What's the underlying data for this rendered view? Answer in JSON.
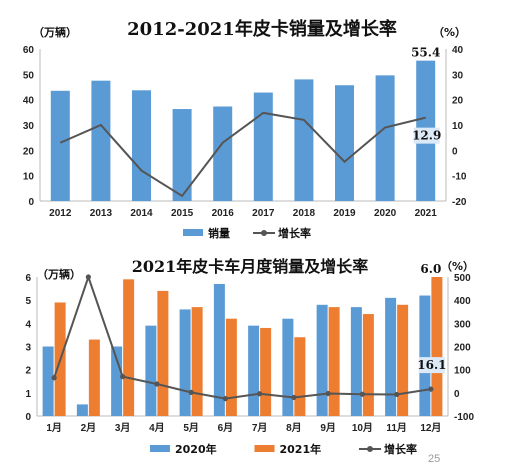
{
  "colors": {
    "blue": "#5b9bd5",
    "orange": "#ed7d31",
    "line": "#555555"
  },
  "page_number": "25",
  "chart_data": [
    {
      "type": "bar",
      "title": "2012-2021年皮卡销量及增长率",
      "y_unit": "（万辆）",
      "y2_unit": "（%）",
      "categories": [
        "2012",
        "2013",
        "2014",
        "2015",
        "2016",
        "2017",
        "2018",
        "2019",
        "2020",
        "2021"
      ],
      "series": [
        {
          "name": "销量",
          "type": "bar",
          "axis": "left",
          "color": "#5b9bd5",
          "values": [
            43.5,
            47.5,
            43.7,
            36.3,
            37.3,
            42.8,
            48.0,
            45.7,
            49.6,
            55.4
          ]
        },
        {
          "name": "增长率",
          "type": "line",
          "axis": "right",
          "color": "#555555",
          "values": [
            3,
            10,
            -8,
            -18,
            3,
            14.8,
            12,
            -4.5,
            9,
            12.9
          ]
        }
      ],
      "left_axis": {
        "ylim": [
          0,
          60
        ],
        "ticks": [
          "0",
          "10",
          "20",
          "30",
          "40",
          "50",
          "60"
        ]
      },
      "right_axis": {
        "ylim": [
          -20,
          40
        ],
        "ticks": [
          "-20",
          "-10",
          "0",
          "10",
          "20",
          "30",
          "40"
        ]
      },
      "annotations": [
        {
          "text": "55.4",
          "category": "2021",
          "series": "销量"
        },
        {
          "text": "12.9",
          "category": "2021",
          "series": "增长率"
        }
      ],
      "legend": {
        "placement": "bottom",
        "items": [
          "销量",
          "增长率"
        ]
      },
      "grid": false
    },
    {
      "type": "bar",
      "title": "2021年皮卡车月度销量及增长率",
      "y_unit": "（万辆）",
      "y2_unit": "（%）",
      "categories": [
        "1月",
        "2月",
        "3月",
        "4月",
        "5月",
        "6月",
        "7月",
        "8月",
        "9月",
        "10月",
        "11月",
        "12月"
      ],
      "series": [
        {
          "name": "2020年",
          "type": "bar",
          "axis": "left",
          "color": "#5b9bd5",
          "values": [
            3.0,
            0.5,
            3.0,
            3.9,
            4.6,
            5.7,
            3.9,
            4.2,
            4.8,
            4.7,
            5.1,
            5.2
          ]
        },
        {
          "name": "2021年",
          "type": "bar",
          "axis": "left",
          "color": "#ed7d31",
          "values": [
            4.9,
            3.3,
            5.9,
            5.4,
            4.7,
            4.2,
            3.8,
            3.4,
            4.7,
            4.4,
            4.8,
            6.0
          ]
        },
        {
          "name": "增长率",
          "type": "line",
          "axis": "right",
          "color": "#555555",
          "values": [
            65,
            500,
            70,
            38,
            2,
            -25,
            -4,
            -20,
            -3,
            -6,
            -7,
            16.1
          ]
        }
      ],
      "left_axis": {
        "ylim": [
          0,
          6
        ],
        "ticks": [
          "0",
          "1",
          "2",
          "3",
          "4",
          "5",
          "6"
        ]
      },
      "right_axis": {
        "ylim": [
          -100,
          500
        ],
        "ticks": [
          "-100",
          "0",
          "100",
          "200",
          "300",
          "400",
          "500"
        ]
      },
      "annotations": [
        {
          "text": "6.0",
          "category": "12月",
          "series": "2021年"
        },
        {
          "text": "16.1",
          "category": "12月",
          "series": "增长率"
        }
      ],
      "legend": {
        "placement": "bottom",
        "items": [
          "2020年",
          "2021年",
          "增长率"
        ]
      },
      "grid": false
    }
  ]
}
